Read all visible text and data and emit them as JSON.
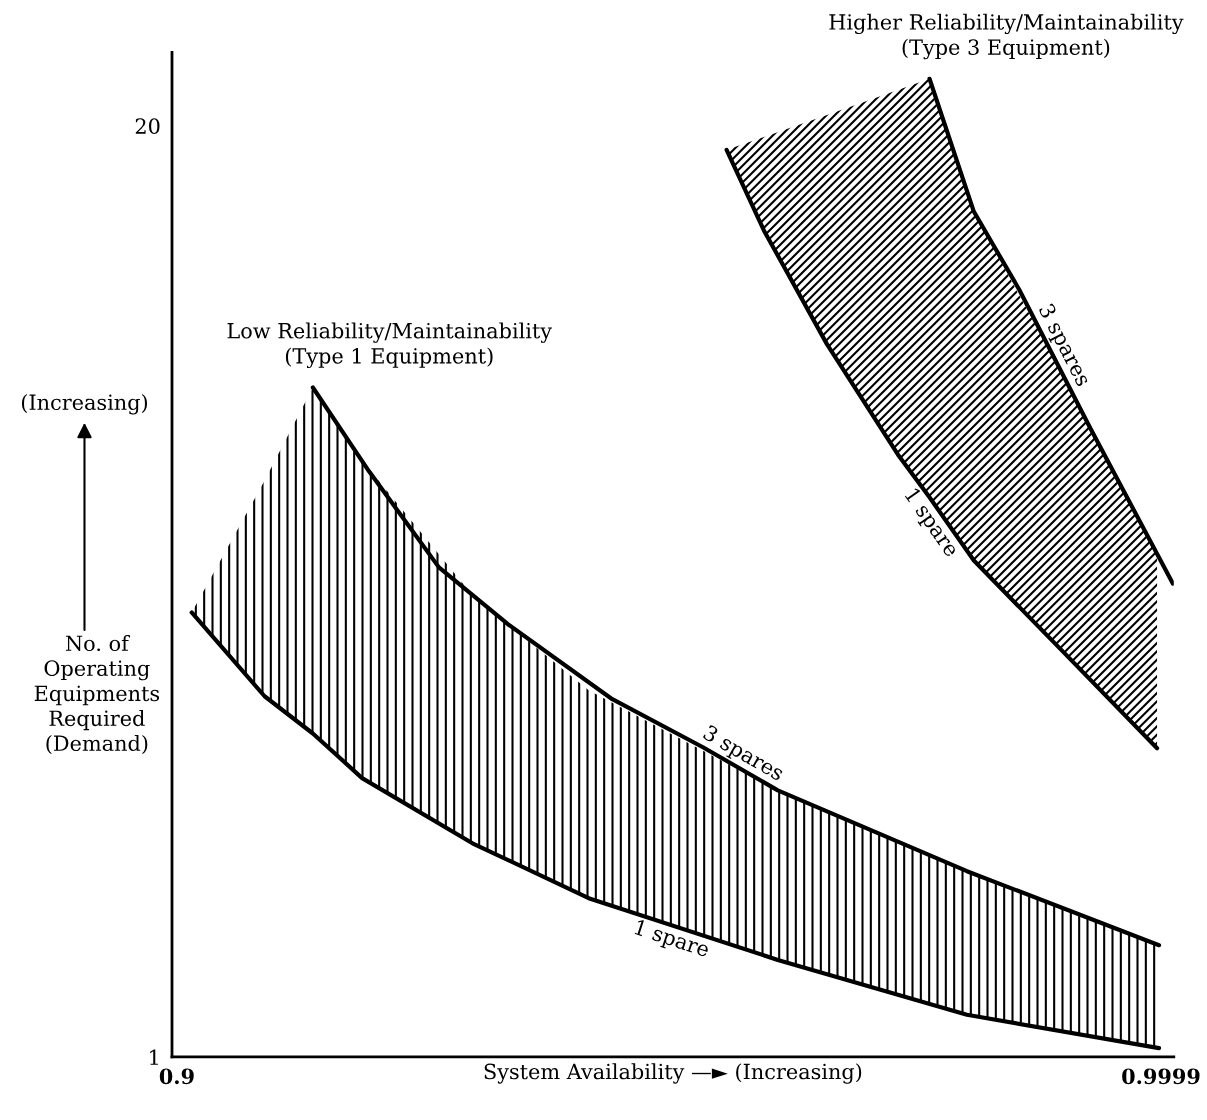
{
  "chart_data": {
    "type": "line",
    "xlabel": "System Availability —► (Increasing)",
    "ylabel": "No. of\nOperating\nEquipments\nRequired\n(Demand)",
    "annotations": [
      "Low Reliability/Maintainability\n(Type 1 Equipment)",
      "Higher Reliability/Maintainability\n(Type 3 Equipment)",
      "(Increasing)"
    ],
    "xlim": [
      0.8995,
      1.0012
    ],
    "ylim": [
      1,
      21.5
    ],
    "xticks": [
      0.9,
      0.9999
    ],
    "yticks": [
      1,
      20
    ],
    "grid": false,
    "legend": false,
    "marker": "none",
    "line_style": "solid",
    "series": [
      {
        "name": "1 spare",
        "color": "#000000",
        "x": [
          0.9015,
          0.9089,
          0.9138,
          0.9188,
          0.93,
          0.9418,
          0.961,
          0.9802,
          0.9997
        ],
        "values": [
          10.07,
          8.36,
          7.6,
          6.69,
          5.36,
          4.24,
          2.98,
          1.86,
          1.18
        ],
        "lower": [
          10.07,
          8.36,
          7.6,
          6.69,
          5.36,
          4.24,
          2.98,
          1.86,
          1.18
        ],
        "upper": [
          10.07,
          12.76,
          14.66,
          13.17,
          10.42,
          8.48,
          6.44,
          4.79,
          3.28
        ]
      },
      {
        "name": "3 spares",
        "color": "#000000",
        "x": [
          0.9138,
          0.9195,
          0.9266,
          0.9336,
          0.9442,
          0.9534,
          0.961,
          0.9802,
          0.9997
        ],
        "values": [
          14.66,
          12.95,
          10.99,
          9.83,
          8.3,
          7.32,
          6.44,
          4.79,
          3.28
        ]
      },
      {
        "name": "1 spare",
        "color": "#000000",
        "x": [
          0.9558,
          0.9596,
          0.966,
          0.9732,
          0.9764,
          0.9809,
          0.99,
          0.9995
        ],
        "values": [
          19.51,
          17.86,
          15.54,
          13.29,
          12.42,
          11.13,
          9.26,
          7.3
        ],
        "lower": [
          19.51,
          17.86,
          15.54,
          13.29,
          12.42,
          11.13,
          9.26,
          7.3
        ],
        "upper": [
          19.51,
          19.77,
          20.22,
          20.73,
          20.96,
          18.25,
          14.88,
          11.27
        ]
      },
      {
        "name": "3 spares",
        "color": "#000000",
        "x": [
          0.9764,
          0.9809,
          0.9855,
          0.9927,
          1.0011
        ],
        "values": [
          20.96,
          18.25,
          16.66,
          13.84,
          10.66
        ]
      }
    ]
  }
}
